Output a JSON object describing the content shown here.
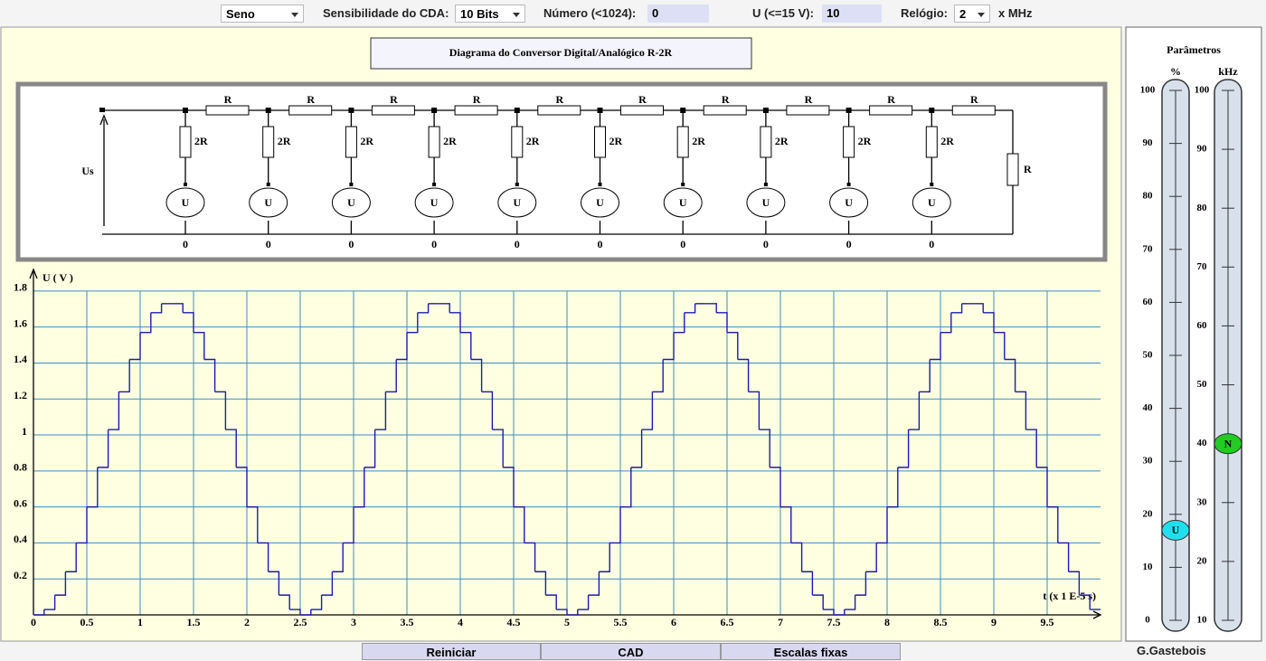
{
  "toolbar": {
    "function": "Seno",
    "sensitivity_label": "Sensibilidade do CDA:",
    "sensitivity": "10 Bits",
    "number_label": "Número (<1024):",
    "number": 0,
    "voltage_label": "U (<=15 V):",
    "voltage": 10,
    "clock_label": "Relógio:",
    "clock": 2,
    "clock_unit": "x MHz"
  },
  "diagram": {
    "title": "Diagrama do Conversor Digital/Analógico R-2R",
    "output_label": "Us",
    "series_resistors": [
      "R",
      "R",
      "R",
      "R",
      "R",
      "R",
      "R",
      "R",
      "R",
      "R"
    ],
    "shunt_resistors": [
      "2R",
      "2R",
      "2R",
      "2R",
      "2R",
      "2R",
      "2R",
      "2R",
      "2R",
      "2R"
    ],
    "sources": [
      "U",
      "U",
      "U",
      "U",
      "U",
      "U",
      "U",
      "U",
      "U",
      "U"
    ],
    "bits": [
      0,
      0,
      0,
      0,
      0,
      0,
      0,
      0,
      0,
      0
    ],
    "termination": "R"
  },
  "chart_data": {
    "type": "line",
    "y_label": "U ( V )",
    "x_label": "t (x 1 E-5 s)",
    "step": true,
    "grid": true,
    "color": "#1c1ca8",
    "x": [
      0,
      0.1,
      0.2,
      0.3,
      0.4,
      0.5,
      0.6,
      0.7,
      0.8,
      0.9,
      1,
      1.1,
      1.2,
      1.3,
      1.4,
      1.5,
      1.6,
      1.7,
      1.8,
      1.9,
      2,
      2.1,
      2.2,
      2.3,
      2.4,
      2.5,
      2.6,
      2.7,
      2.8,
      2.9,
      3,
      3.1,
      3.2,
      3.3,
      3.4,
      3.5,
      3.6,
      3.7,
      3.8,
      3.9,
      4,
      4.1,
      4.2,
      4.3,
      4.4,
      4.5,
      4.6,
      4.7,
      4.8,
      4.9,
      5,
      5.1,
      5.2,
      5.3,
      5.4,
      5.5,
      5.6,
      5.7,
      5.8,
      5.9,
      6,
      6.1,
      6.2,
      6.3,
      6.4,
      6.5,
      6.6,
      6.7,
      6.8,
      6.9,
      7,
      7.1,
      7.2,
      7.3,
      7.4,
      7.5,
      7.6,
      7.7,
      7.8,
      7.9,
      8,
      8.1,
      8.2,
      8.3,
      8.4,
      8.5,
      8.6,
      8.7,
      8.8,
      8.9,
      9,
      9.1,
      9.2,
      9.3,
      9.4,
      9.5,
      9.6,
      9.7,
      9.8,
      9.9
    ],
    "values": [
      0,
      0.03,
      0.11,
      0.24,
      0.4,
      0.6,
      0.82,
      1.03,
      1.24,
      1.42,
      1.57,
      1.68,
      1.73,
      1.73,
      1.68,
      1.57,
      1.42,
      1.24,
      1.03,
      0.82,
      0.6,
      0.4,
      0.24,
      0.11,
      0.03,
      0,
      0.03,
      0.11,
      0.24,
      0.4,
      0.6,
      0.82,
      1.03,
      1.24,
      1.42,
      1.57,
      1.68,
      1.73,
      1.73,
      1.68,
      1.57,
      1.42,
      1.24,
      1.03,
      0.82,
      0.6,
      0.4,
      0.24,
      0.11,
      0.03,
      0,
      0.03,
      0.11,
      0.24,
      0.4,
      0.6,
      0.82,
      1.03,
      1.24,
      1.42,
      1.57,
      1.68,
      1.73,
      1.73,
      1.68,
      1.57,
      1.42,
      1.24,
      1.03,
      0.82,
      0.6,
      0.4,
      0.24,
      0.11,
      0.03,
      0,
      0.03,
      0.11,
      0.24,
      0.4,
      0.6,
      0.82,
      1.03,
      1.24,
      1.42,
      1.57,
      1.68,
      1.73,
      1.73,
      1.68,
      1.57,
      1.42,
      1.24,
      1.03,
      0.82,
      0.6,
      0.4,
      0.24,
      0.11,
      0.03
    ],
    "xlim": [
      0,
      10
    ],
    "ylim": [
      0,
      1.9
    ],
    "xticks": [
      0,
      0.5,
      1,
      1.5,
      2,
      2.5,
      3,
      3.5,
      4,
      4.5,
      5,
      5.5,
      6,
      6.5,
      7,
      7.5,
      8,
      8.5,
      9,
      9.5
    ],
    "yticks": [
      0.2,
      0.4,
      0.6,
      0.8,
      1,
      1.2,
      1.4,
      1.6,
      1.8
    ]
  },
  "parameters": {
    "title": "Parâmetros",
    "sliders": [
      {
        "unit": "%",
        "lim": [
          0,
          100
        ],
        "ticks": [
          0,
          10,
          20,
          30,
          40,
          50,
          60,
          70,
          80,
          90,
          100
        ],
        "value": 17,
        "knob": "U",
        "color": "#22dff0"
      },
      {
        "unit": "kHz",
        "lim": [
          10,
          100
        ],
        "ticks": [
          10,
          20,
          30,
          40,
          50,
          60,
          70,
          80,
          90,
          100
        ],
        "value": 40,
        "knob": "N",
        "color": "#22cc22"
      }
    ]
  },
  "buttons": [
    "Reiniciar",
    "CAD",
    "Escalas fixas"
  ],
  "author": "G.Gastebois"
}
